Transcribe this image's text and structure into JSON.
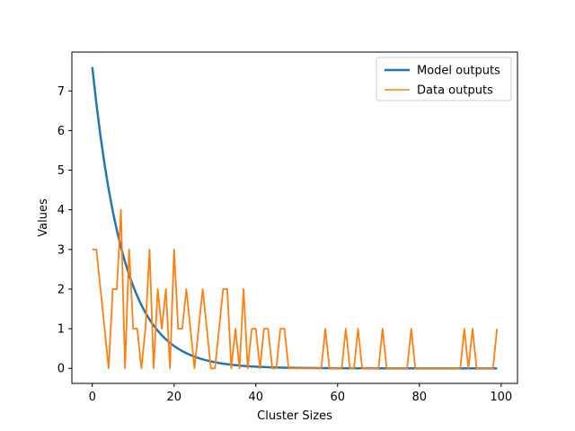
{
  "chart_data": {
    "type": "line",
    "title": "",
    "xlabel": "Cluster Sizes",
    "ylabel": "Values",
    "xlim": [
      -5,
      104
    ],
    "ylim": [
      -0.38,
      7.98
    ],
    "xticks": [
      0,
      20,
      40,
      60,
      80,
      100
    ],
    "yticks": [
      0,
      1,
      2,
      3,
      4,
      5,
      6,
      7
    ],
    "grid": false,
    "legend_position": "top-right",
    "series": [
      {
        "name": "Model outputs",
        "color": "#1f77b4",
        "model": "exponential",
        "amplitude": 7.6,
        "decay_rate": 0.13,
        "x_start": 0,
        "x_end": 99
      },
      {
        "name": "Data outputs",
        "color": "#ff7f0e",
        "values": [
          3,
          3,
          2,
          1,
          0,
          2,
          2,
          4,
          0,
          3,
          1,
          1,
          0,
          1,
          3,
          0,
          2,
          1,
          2,
          0,
          3,
          1,
          1,
          2,
          1,
          0,
          1,
          2,
          1,
          0,
          0,
          1,
          2,
          2,
          0,
          1,
          0,
          2,
          0,
          1,
          1,
          0,
          1,
          1,
          0,
          0,
          1,
          1,
          0,
          0,
          0,
          0,
          0,
          0,
          0,
          0,
          0,
          1,
          0,
          0,
          0,
          0,
          1,
          0,
          0,
          1,
          0,
          0,
          0,
          0,
          0,
          1,
          0,
          0,
          0,
          0,
          0,
          0,
          1,
          0,
          0,
          0,
          0,
          0,
          0,
          0,
          0,
          0,
          0,
          0,
          0,
          1,
          0,
          1,
          0,
          0,
          0,
          0,
          0,
          1
        ]
      }
    ]
  }
}
